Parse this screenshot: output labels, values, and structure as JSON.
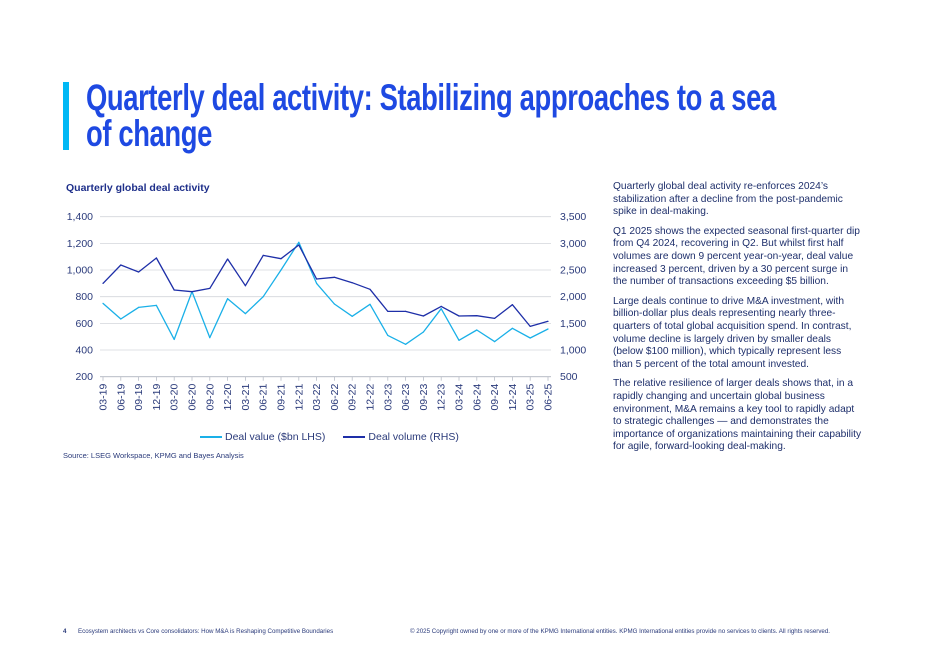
{
  "page": {
    "title": "Quarterly deal activity: Stabilizing approaches to a sea of change",
    "paragraphs": [
      "Quarterly global deal activity re-enforces 2024’s stabilization after a decline from the post-pandemic spike in deal-making.",
      "Q1 2025 shows the expected seasonal first-quarter dip from Q4 2024, recovering in Q2. But whilst first half volumes are down 9 percent year-on-year, deal value increased 3 percent, driven by a 30 percent surge in the number of transactions exceeding $5 billion.",
      "Large deals continue to drive M&A investment, with billion-dollar plus deals representing nearly three-quarters of total global acquisition spend. In contrast, volume decline is largely driven by smaller deals (below $100 million), which typically represent less than 5 percent of the total amount invested.",
      "The relative resilience of larger deals shows that, in a rapidly changing and uncertain global business environment, M&A remains a key tool to rapidly adapt to strategic challenges — and demonstrates the importance of organizations maintaining their capability for agile, forward-looking deal-making."
    ],
    "source": "Source: LSEG Workspace, KPMG and Bayes Analysis",
    "footer": {
      "page_number": "4",
      "doc_title": "Ecosystem architects vs Core consolidators: How M&A is Reshaping Competitive Boundaries",
      "copyright": "© 2025 Copyright owned by one or more of the KPMG International entities. KPMG International entities provide no services to clients. All rights reserved."
    },
    "colors": {
      "accent": "#00b8f5",
      "title": "#1e49e2"
    }
  },
  "chart_data": {
    "type": "line",
    "title": "Quarterly global deal activity",
    "categories": [
      "03-19",
      "06-19",
      "09-19",
      "12-19",
      "03-20",
      "06-20",
      "09-20",
      "12-20",
      "03-21",
      "06-21",
      "09-21",
      "12-21",
      "03-22",
      "06-22",
      "09-22",
      "12-22",
      "03-23",
      "06-23",
      "09-23",
      "12-23",
      "03-24",
      "06-24",
      "09-24",
      "12-24",
      "03-25",
      "06-25"
    ],
    "series": [
      {
        "name": "Deal value ($bn LHS)",
        "axis": "left",
        "color": "#1ab0e8",
        "values": [
          750,
          633,
          720,
          735,
          480,
          838,
          493,
          785,
          673,
          800,
          1000,
          1208,
          900,
          745,
          653,
          743,
          510,
          443,
          535,
          710,
          473,
          550,
          463,
          563,
          490,
          558
        ]
      },
      {
        "name": "Deal volume (RHS)",
        "axis": "right",
        "color": "#1e2fa8",
        "values": [
          2250,
          2594,
          2463,
          2725,
          2125,
          2094,
          2156,
          2706,
          2206,
          2775,
          2713,
          2969,
          2331,
          2363,
          2263,
          2138,
          1725,
          1725,
          1638,
          1819,
          1638,
          1644,
          1594,
          1850,
          1444,
          1538
        ]
      }
    ],
    "y_left": {
      "range": [
        200,
        1400
      ],
      "ticks": [
        "200",
        "400",
        "600",
        "800",
        "1,000",
        "1,200",
        "1,400"
      ]
    },
    "y_right": {
      "range": [
        500,
        3500
      ],
      "ticks": [
        "500",
        "1,000",
        "1,500",
        "2,000",
        "2,500",
        "3,000",
        "3,500"
      ]
    },
    "grid": true,
    "legend": "bottom"
  }
}
